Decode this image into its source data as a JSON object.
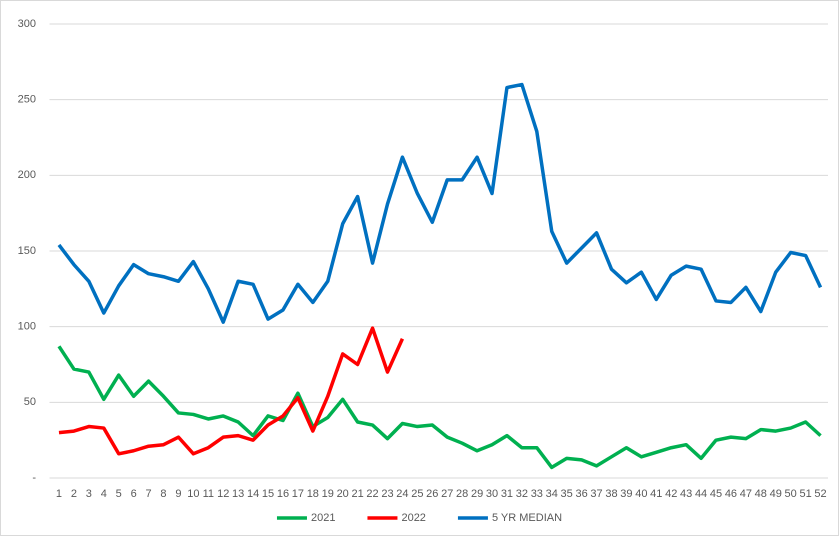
{
  "chart_data": {
    "type": "line",
    "categories": [
      "1",
      "2",
      "3",
      "4",
      "5",
      "6",
      "7",
      "8",
      "9",
      "10",
      "11",
      "12",
      "13",
      "14",
      "15",
      "16",
      "17",
      "18",
      "19",
      "20",
      "21",
      "22",
      "23",
      "24",
      "25",
      "26",
      "27",
      "28",
      "29",
      "30",
      "31",
      "32",
      "33",
      "34",
      "35",
      "36",
      "37",
      "38",
      "39",
      "40",
      "41",
      "42",
      "43",
      "44",
      "45",
      "46",
      "47",
      "48",
      "49",
      "50",
      "51",
      "52"
    ],
    "series": [
      {
        "name": "2021",
        "color": "#00b050",
        "values": [
          87,
          72,
          70,
          52,
          68,
          54,
          64,
          54,
          43,
          42,
          39,
          41,
          37,
          28,
          41,
          38,
          56,
          34,
          40,
          52,
          37,
          35,
          26,
          36,
          34,
          35,
          27,
          23,
          18,
          22,
          28,
          20,
          20,
          7,
          13,
          12,
          8,
          14,
          20,
          14,
          17,
          20,
          22,
          13,
          25,
          27,
          26,
          32,
          31,
          33,
          37,
          28
        ]
      },
      {
        "name": "2022",
        "color": "#ff0000",
        "values": [
          30,
          31,
          34,
          33,
          16,
          18,
          21,
          22,
          27,
          16,
          20,
          27,
          28,
          25,
          35,
          41,
          53,
          31,
          54,
          82,
          75,
          99,
          70,
          92,
          null,
          null,
          null,
          null,
          null,
          null,
          null,
          null,
          null,
          null,
          null,
          null,
          null,
          null,
          null,
          null,
          null,
          null,
          null,
          null,
          null,
          null,
          null,
          null,
          null,
          null,
          null,
          null
        ]
      },
      {
        "name": "5 YR MEDIAN",
        "color": "#0070c0",
        "values": [
          154,
          141,
          130,
          109,
          127,
          141,
          135,
          133,
          130,
          143,
          125,
          103,
          130,
          128,
          105,
          111,
          128,
          116,
          130,
          168,
          186,
          142,
          181,
          212,
          188,
          169,
          197,
          197,
          212,
          188,
          258,
          260,
          229,
          163,
          142,
          152,
          162,
          138,
          129,
          136,
          118,
          134,
          140,
          138,
          117,
          116,
          126,
          110,
          136,
          149,
          147,
          126
        ]
      }
    ],
    "ylim": [
      0,
      300
    ],
    "yticks": [
      {
        "value": 0,
        "label": "-"
      },
      50,
      100,
      150,
      200,
      250,
      300
    ],
    "grid": true,
    "legend": "bottom"
  }
}
